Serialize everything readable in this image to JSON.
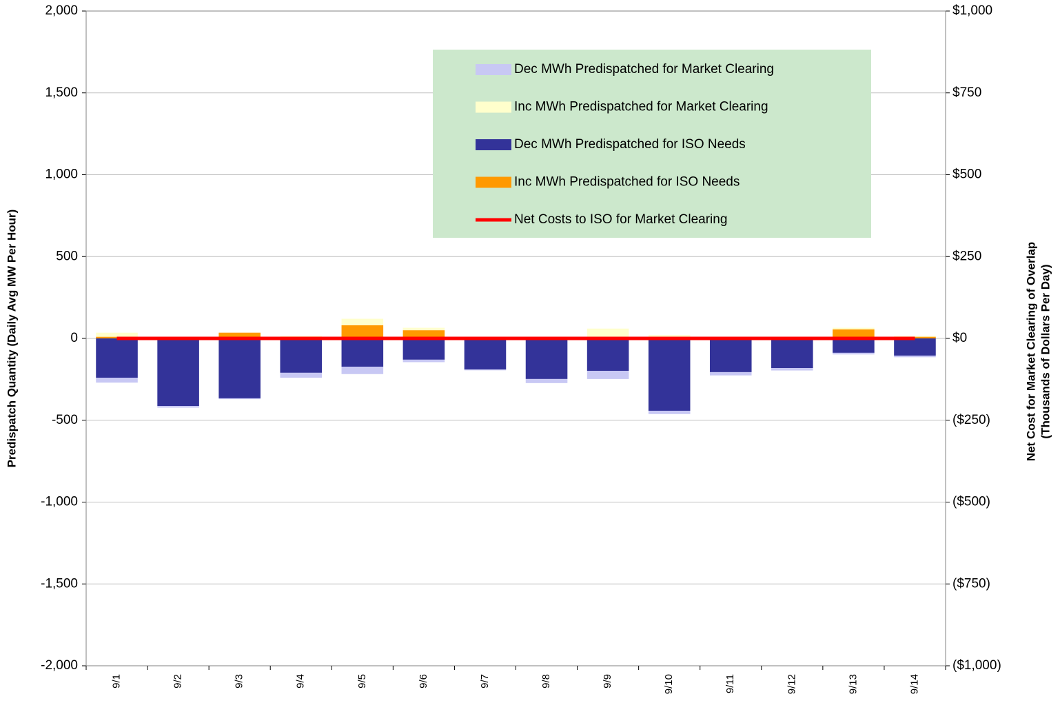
{
  "chart_data": {
    "type": "bar",
    "ylabel": "Predispatch Quantity (Daily Avg MW Per Hour)",
    "y2label": [
      "Net Cost for Market Clearing of Overlap",
      "(Thousands of Dollars Per Day)"
    ],
    "categories": [
      "9/1",
      "9/2",
      "9/3",
      "9/4",
      "9/5",
      "9/6",
      "9/7",
      "9/8",
      "9/9",
      "9/10",
      "9/11",
      "9/12",
      "9/13",
      "9/14"
    ],
    "series": [
      {
        "name": "Dec MWh Predispatched for Market Clearing",
        "color": "#c8c8f4",
        "values": [
          -30,
          -10,
          -5,
          -30,
          -45,
          -15,
          -5,
          -25,
          -50,
          -20,
          -20,
          -15,
          -10,
          -10
        ]
      },
      {
        "name": "Inc MWh Predispatched for Market Clearing",
        "color": "#ffffcc",
        "values": [
          25,
          0,
          0,
          10,
          40,
          15,
          5,
          10,
          60,
          10,
          5,
          5,
          10,
          5
        ]
      },
      {
        "name": "Dec MWh Predispatched for ISO Needs",
        "color": "#333399",
        "values": [
          -240,
          -413,
          -366,
          -210,
          -173,
          -130,
          -190,
          -248,
          -198,
          -442,
          -206,
          -181,
          -88,
          -105
        ]
      },
      {
        "name": "Inc MWh Predispatched for ISO Needs",
        "color": "#ff9900",
        "values": [
          10,
          0,
          35,
          5,
          80,
          50,
          0,
          0,
          0,
          10,
          0,
          0,
          55,
          10
        ]
      },
      {
        "name": "Net Costs to ISO for Market Clearing",
        "color": "#ff0000",
        "type": "line",
        "axis": "y2",
        "values": [
          0,
          0,
          0,
          0,
          0,
          0,
          0,
          0,
          0,
          0,
          0,
          0,
          0,
          0
        ]
      }
    ],
    "ylim": [
      -2000,
      2000
    ],
    "yticks": [
      {
        "value": -2000,
        "label": "-2,000"
      },
      {
        "value": -1500,
        "label": "-1,500"
      },
      {
        "value": -1000,
        "label": "-1,000"
      },
      -500,
      0,
      500,
      {
        "value": 1000,
        "label": "1,000"
      },
      {
        "value": 1500,
        "label": "1,500"
      },
      {
        "value": 2000,
        "label": "2,000"
      }
    ],
    "y2lim": [
      -1000,
      1000
    ],
    "y2ticks": [
      {
        "value": -1000,
        "label": "($1,000)"
      },
      {
        "value": -750,
        "label": "($750)"
      },
      {
        "value": -500,
        "label": "($500)"
      },
      {
        "value": -250,
        "label": "($250)"
      },
      {
        "value": 0,
        "label": "$0"
      },
      {
        "value": 250,
        "label": "$250"
      },
      {
        "value": 500,
        "label": "$500"
      },
      {
        "value": 750,
        "label": "$750"
      },
      {
        "value": 1000,
        "label": "$1,000"
      }
    ],
    "grid": true,
    "legend_position": "upper right",
    "legend_color": "#cce8cc"
  }
}
